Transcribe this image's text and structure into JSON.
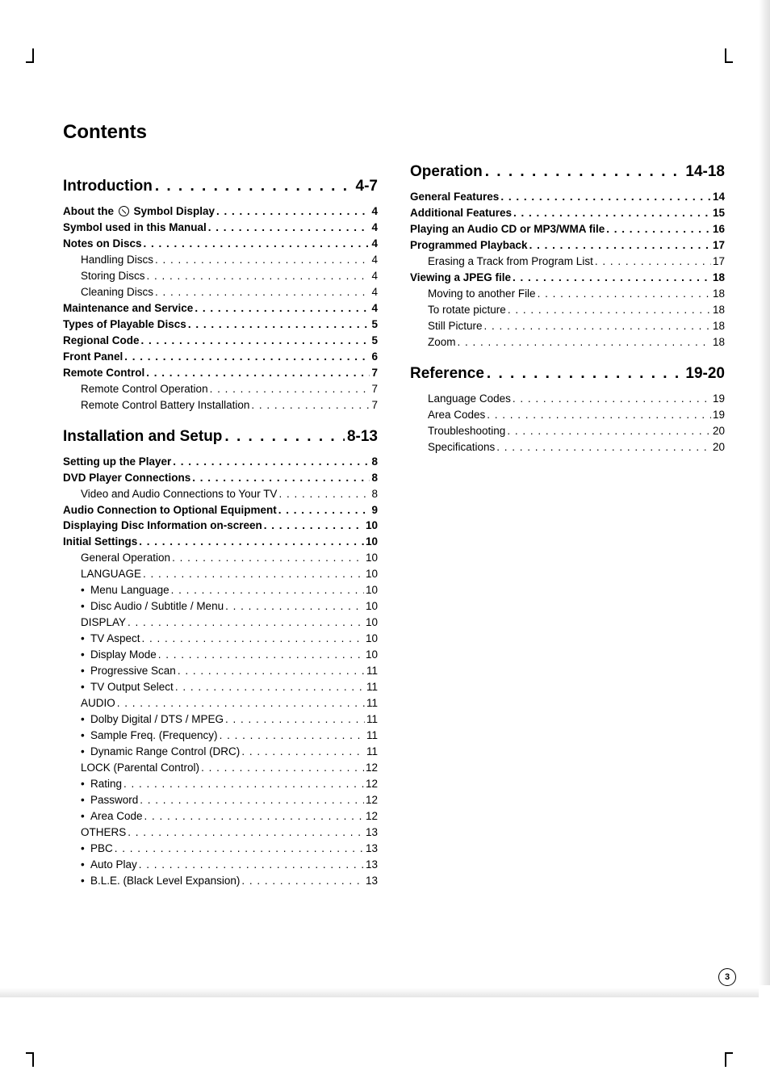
{
  "page_number": "3",
  "title": "Contents",
  "dots_section": ". . . . . . . . . . . . . . . . . . . . . . . . . . . . . . . . . . . . . . . .",
  "dots_row": " . . . . . . . . . . . . . . . . . . . . . . . . . . . . . . . . . . . . . . . . . . . . . . . . . . . . . . . . . . . .",
  "left": {
    "sec1": {
      "title": "Introduction",
      "pages": "4-7"
    },
    "sec1_rows": [
      {
        "bold": true,
        "indent": 0,
        "bullet": false,
        "label_pre": "About the ",
        "symbol": true,
        "label_post": " Symbol Display",
        "pg": "4"
      },
      {
        "bold": true,
        "indent": 0,
        "bullet": false,
        "label": "Symbol used in this Manual",
        "pg": "4"
      },
      {
        "bold": true,
        "indent": 0,
        "bullet": false,
        "label": "Notes on Discs",
        "pg": "4"
      },
      {
        "bold": false,
        "indent": 1,
        "bullet": false,
        "label": "Handling Discs",
        "pg": "4"
      },
      {
        "bold": false,
        "indent": 1,
        "bullet": false,
        "label": "Storing Discs",
        "pg": "4"
      },
      {
        "bold": false,
        "indent": 1,
        "bullet": false,
        "label": "Cleaning Discs",
        "pg": "4"
      },
      {
        "bold": true,
        "indent": 0,
        "bullet": false,
        "label": "Maintenance and Service",
        "pg": "4"
      },
      {
        "bold": true,
        "indent": 0,
        "bullet": false,
        "label": "Types of Playable Discs",
        "pg": "5"
      },
      {
        "bold": true,
        "indent": 0,
        "bullet": false,
        "label": "Regional Code",
        "pg": "5"
      },
      {
        "bold": true,
        "indent": 0,
        "bullet": false,
        "label": "Front Panel",
        "pg": "6"
      },
      {
        "bold": true,
        "indent": 0,
        "bullet": false,
        "label": "Remote Control",
        "pg": "7"
      },
      {
        "bold": false,
        "indent": 1,
        "bullet": false,
        "label": "Remote Control Operation",
        "pg": "7"
      },
      {
        "bold": false,
        "indent": 1,
        "bullet": false,
        "label": "Remote Control Battery Installation",
        "pg": "7"
      }
    ],
    "sec2": {
      "title": "Installation and Setup",
      "pages": "8-13"
    },
    "sec2_rows": [
      {
        "bold": true,
        "indent": 0,
        "bullet": false,
        "label": "Setting up the Player",
        "pg": "8"
      },
      {
        "bold": true,
        "indent": 0,
        "bullet": false,
        "label": "DVD Player Connections",
        "pg": "8"
      },
      {
        "bold": false,
        "indent": 1,
        "bullet": false,
        "label": "Video and Audio Connections to Your TV",
        "pg": "8"
      },
      {
        "bold": true,
        "indent": 0,
        "bullet": false,
        "label": "Audio Connection to Optional Equipment",
        "pg": "9"
      },
      {
        "bold": true,
        "indent": 0,
        "bullet": false,
        "label": "Displaying Disc Information on-screen",
        "pg": "10"
      },
      {
        "bold": true,
        "indent": 0,
        "bullet": false,
        "label": "Initial Settings",
        "pg": "10"
      },
      {
        "bold": false,
        "indent": 1,
        "bullet": false,
        "label": "General Operation",
        "pg": "10"
      },
      {
        "bold": false,
        "indent": 1,
        "bullet": false,
        "label": "LANGUAGE",
        "pg": "10"
      },
      {
        "bold": false,
        "indent": 1,
        "bullet": true,
        "label": "Menu Language",
        "pg": "10"
      },
      {
        "bold": false,
        "indent": 1,
        "bullet": true,
        "label": "Disc Audio / Subtitle / Menu",
        "pg": "10"
      },
      {
        "bold": false,
        "indent": 1,
        "bullet": false,
        "label": "DISPLAY",
        "pg": "10"
      },
      {
        "bold": false,
        "indent": 1,
        "bullet": true,
        "label": "TV Aspect",
        "pg": "10"
      },
      {
        "bold": false,
        "indent": 1,
        "bullet": true,
        "label": "Display Mode",
        "pg": "10"
      },
      {
        "bold": false,
        "indent": 1,
        "bullet": true,
        "label": "Progressive Scan",
        "pg": "11"
      },
      {
        "bold": false,
        "indent": 1,
        "bullet": true,
        "label": "TV Output Select",
        "pg": "11"
      },
      {
        "bold": false,
        "indent": 1,
        "bullet": false,
        "label": "AUDIO",
        "pg": "11"
      },
      {
        "bold": false,
        "indent": 1,
        "bullet": true,
        "label": "Dolby Digital / DTS / MPEG",
        "pg": "11"
      },
      {
        "bold": false,
        "indent": 1,
        "bullet": true,
        "label": "Sample Freq. (Frequency)",
        "pg": "11"
      },
      {
        "bold": false,
        "indent": 1,
        "bullet": true,
        "label": "Dynamic Range Control (DRC)",
        "pg": "11"
      },
      {
        "bold": false,
        "indent": 1,
        "bullet": false,
        "label": "LOCK (Parental Control)",
        "pg": "12"
      },
      {
        "bold": false,
        "indent": 1,
        "bullet": true,
        "label": "Rating",
        "pg": "12"
      },
      {
        "bold": false,
        "indent": 1,
        "bullet": true,
        "label": "Password",
        "pg": "12"
      },
      {
        "bold": false,
        "indent": 1,
        "bullet": true,
        "label": "Area Code",
        "pg": "12"
      },
      {
        "bold": false,
        "indent": 1,
        "bullet": false,
        "label": "OTHERS",
        "pg": "13"
      },
      {
        "bold": false,
        "indent": 1,
        "bullet": true,
        "label": "PBC",
        "pg": "13"
      },
      {
        "bold": false,
        "indent": 1,
        "bullet": true,
        "label": "Auto Play",
        "pg": "13"
      },
      {
        "bold": false,
        "indent": 1,
        "bullet": true,
        "label": "B.L.E. (Black Level Expansion)",
        "pg": "13"
      }
    ]
  },
  "right": {
    "sec3": {
      "title": "Operation",
      "pages": "14-18"
    },
    "sec3_rows": [
      {
        "bold": true,
        "indent": 0,
        "bullet": false,
        "label": "General Features",
        "pg": "14"
      },
      {
        "bold": true,
        "indent": 0,
        "bullet": false,
        "label": "Additional Features",
        "pg": "15"
      },
      {
        "bold": true,
        "indent": 0,
        "bullet": false,
        "label": "Playing an Audio CD or MP3/WMA file",
        "pg": "16"
      },
      {
        "bold": true,
        "indent": 0,
        "bullet": false,
        "label": "Programmed Playback",
        "pg": "17"
      },
      {
        "bold": false,
        "indent": 1,
        "bullet": false,
        "label": "Erasing a Track from Program List",
        "pg": "17"
      },
      {
        "bold": true,
        "indent": 0,
        "bullet": false,
        "label": "Viewing a JPEG file",
        "pg": "18"
      },
      {
        "bold": false,
        "indent": 1,
        "bullet": false,
        "label": "Moving to another File",
        "pg": "18"
      },
      {
        "bold": false,
        "indent": 1,
        "bullet": false,
        "label": "To rotate picture",
        "pg": "18"
      },
      {
        "bold": false,
        "indent": 1,
        "bullet": false,
        "label": "Still Picture",
        "pg": "18"
      },
      {
        "bold": false,
        "indent": 1,
        "bullet": false,
        "label": "Zoom",
        "pg": "18"
      }
    ],
    "sec4": {
      "title": "Reference",
      "pages": "19-20"
    },
    "sec4_rows": [
      {
        "bold": false,
        "indent": 1,
        "bullet": false,
        "label": "Language Codes",
        "pg": "19"
      },
      {
        "bold": false,
        "indent": 1,
        "bullet": false,
        "label": "Area Codes",
        "pg": "19"
      },
      {
        "bold": false,
        "indent": 1,
        "bullet": false,
        "label": "Troubleshooting",
        "pg": "20"
      },
      {
        "bold": false,
        "indent": 1,
        "bullet": false,
        "label": "Specifications",
        "pg": "20"
      }
    ]
  }
}
